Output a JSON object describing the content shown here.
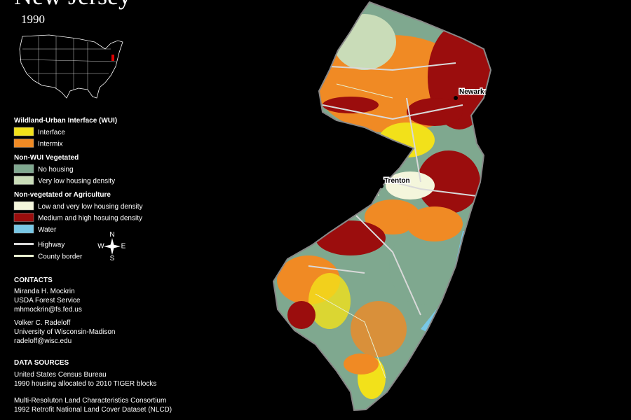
{
  "header": {
    "title": "New Jersey",
    "year": "1990"
  },
  "legend": {
    "sections": [
      {
        "title": "Wildland-Urban Interface (WUI)",
        "items": [
          {
            "label": "Interface",
            "color": "#f2e11a"
          },
          {
            "label": "Intermix",
            "color": "#f08a24"
          }
        ]
      },
      {
        "title": "Non-WUI Vegetated",
        "items": [
          {
            "label": "No housing",
            "color": "#7fa88f"
          },
          {
            "label": "Very low housing density",
            "color": "#c9dcb8"
          }
        ]
      },
      {
        "title": "Non-vegetated or Agriculture",
        "items": [
          {
            "label": "Low and very low housing density",
            "color": "#f4f6dc"
          },
          {
            "label": "Medium and high hosuing density",
            "color": "#9b0d0d"
          },
          {
            "label": "Water",
            "color": "#78c8e6"
          }
        ]
      }
    ],
    "lines": [
      {
        "label": "Highway",
        "color": "#d9d9d9"
      },
      {
        "label": "County border",
        "color": "#e8efd0"
      }
    ]
  },
  "compass": {
    "n": "N",
    "e": "E",
    "s": "S",
    "w": "W"
  },
  "cities": [
    {
      "label": "Newark"
    },
    {
      "label": "Trenton"
    }
  ],
  "contacts": {
    "title": "CONTACTS",
    "people": [
      {
        "lines": [
          "Miranda H. Mockrin",
          "USDA Forest Service",
          "mhmockrin@fs.fed.us"
        ]
      },
      {
        "lines": [
          "Volker C. Radeloff",
          "University of Wisconsin-Madison",
          "radeloff@wisc.edu"
        ]
      }
    ]
  },
  "sources": {
    "title": "DATA SOURCES",
    "groups": [
      {
        "lines": [
          "United States Census Bureau",
          "1990 housing allocated to 2010 TIGER blocks"
        ]
      },
      {
        "lines": [
          "Multi-Resoluton Land Characteristics Consortium",
          "1992 Retrofit National Land Cover Dataset (NLCD)"
        ]
      }
    ]
  }
}
